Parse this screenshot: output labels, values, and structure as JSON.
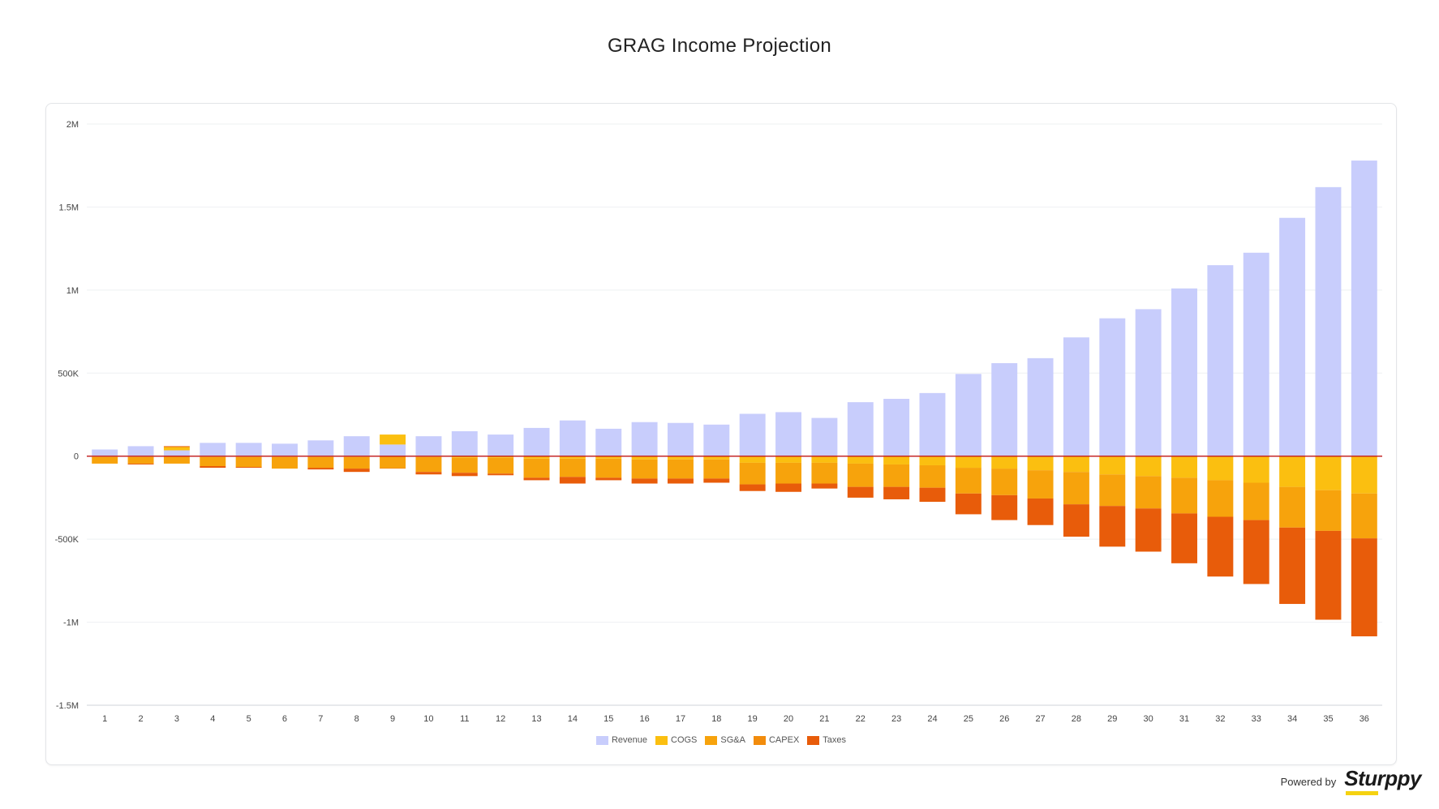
{
  "title": "GRAG Income Projection",
  "powered_by": {
    "label": "Powered by",
    "brand": "Sturppy"
  },
  "chart_data": {
    "type": "bar",
    "stacked": true,
    "title": "GRAG Income Projection",
    "xlabel": "",
    "ylabel": "",
    "ylim": [
      -1500000,
      2000000
    ],
    "y_ticks": [
      {
        "value": 2000000,
        "label": "2M"
      },
      {
        "value": 1500000,
        "label": "1.5M"
      },
      {
        "value": 1000000,
        "label": "1M"
      },
      {
        "value": 500000,
        "label": "500K"
      },
      {
        "value": 0,
        "label": "0"
      },
      {
        "value": -500000,
        "label": "-500K"
      },
      {
        "value": -1000000,
        "label": "-1M"
      },
      {
        "value": -1500000,
        "label": "-1.5M"
      }
    ],
    "grid": true,
    "legend_position": "bottom",
    "categories": [
      "1",
      "2",
      "3",
      "4",
      "5",
      "6",
      "7",
      "8",
      "9",
      "10",
      "11",
      "12",
      "13",
      "14",
      "15",
      "16",
      "17",
      "18",
      "19",
      "20",
      "21",
      "22",
      "23",
      "24",
      "25",
      "26",
      "27",
      "28",
      "29",
      "30",
      "31",
      "32",
      "33",
      "34",
      "35",
      "36"
    ],
    "series": [
      {
        "name": "Revenue",
        "color": "#c8cdfc",
        "values": [
          40000,
          60000,
          35000,
          80000,
          80000,
          75000,
          95000,
          120000,
          70000,
          120000,
          150000,
          130000,
          170000,
          215000,
          165000,
          205000,
          200000,
          190000,
          255000,
          265000,
          230000,
          325000,
          345000,
          380000,
          495000,
          560000,
          590000,
          715000,
          830000,
          885000,
          1010000,
          1150000,
          1225000,
          1435000,
          1620000,
          1780000
        ]
      },
      {
        "name": "COGS",
        "color": "#fbbf10",
        "values": [
          -5000,
          -5000,
          20000,
          -5000,
          -5000,
          -5000,
          -5000,
          -5000,
          60000,
          -5000,
          -10000,
          -10000,
          -15000,
          -15000,
          -15000,
          -20000,
          -20000,
          -20000,
          -40000,
          -40000,
          -40000,
          -45000,
          -50000,
          -55000,
          -70000,
          -75000,
          -85000,
          -95000,
          -110000,
          -120000,
          -130000,
          -145000,
          -160000,
          -185000,
          -205000,
          -225000
        ]
      },
      {
        "name": "SG&A",
        "color": "#f7a30c",
        "values": [
          -40000,
          -40000,
          -45000,
          -55000,
          -60000,
          -70000,
          -65000,
          -70000,
          -70000,
          -90000,
          -90000,
          -95000,
          -115000,
          -110000,
          -115000,
          -115000,
          -115000,
          -115000,
          -130000,
          -125000,
          -125000,
          -140000,
          -135000,
          -135000,
          -155000,
          -160000,
          -170000,
          -195000,
          -190000,
          -195000,
          -215000,
          -220000,
          -225000,
          -245000,
          -245000,
          -270000
        ]
      },
      {
        "name": "CAPEX",
        "color": "#f28c0c",
        "values": [
          0,
          0,
          0,
          0,
          0,
          0,
          0,
          0,
          -5000,
          0,
          0,
          0,
          0,
          0,
          0,
          0,
          0,
          0,
          0,
          0,
          0,
          0,
          0,
          0,
          0,
          0,
          0,
          0,
          0,
          0,
          0,
          0,
          0,
          0,
          0,
          0
        ]
      },
      {
        "name": "Taxes",
        "color": "#e85c0a",
        "values": [
          0,
          -5000,
          5000,
          -10000,
          -5000,
          0,
          -10000,
          -20000,
          0,
          -15000,
          -20000,
          -10000,
          -15000,
          -40000,
          -15000,
          -30000,
          -30000,
          -25000,
          -40000,
          -50000,
          -30000,
          -65000,
          -75000,
          -85000,
          -125000,
          -150000,
          -160000,
          -195000,
          -245000,
          -260000,
          -300000,
          -360000,
          -385000,
          -460000,
          -535000,
          -590000
        ]
      }
    ],
    "zero_line_color": "#c62828"
  }
}
